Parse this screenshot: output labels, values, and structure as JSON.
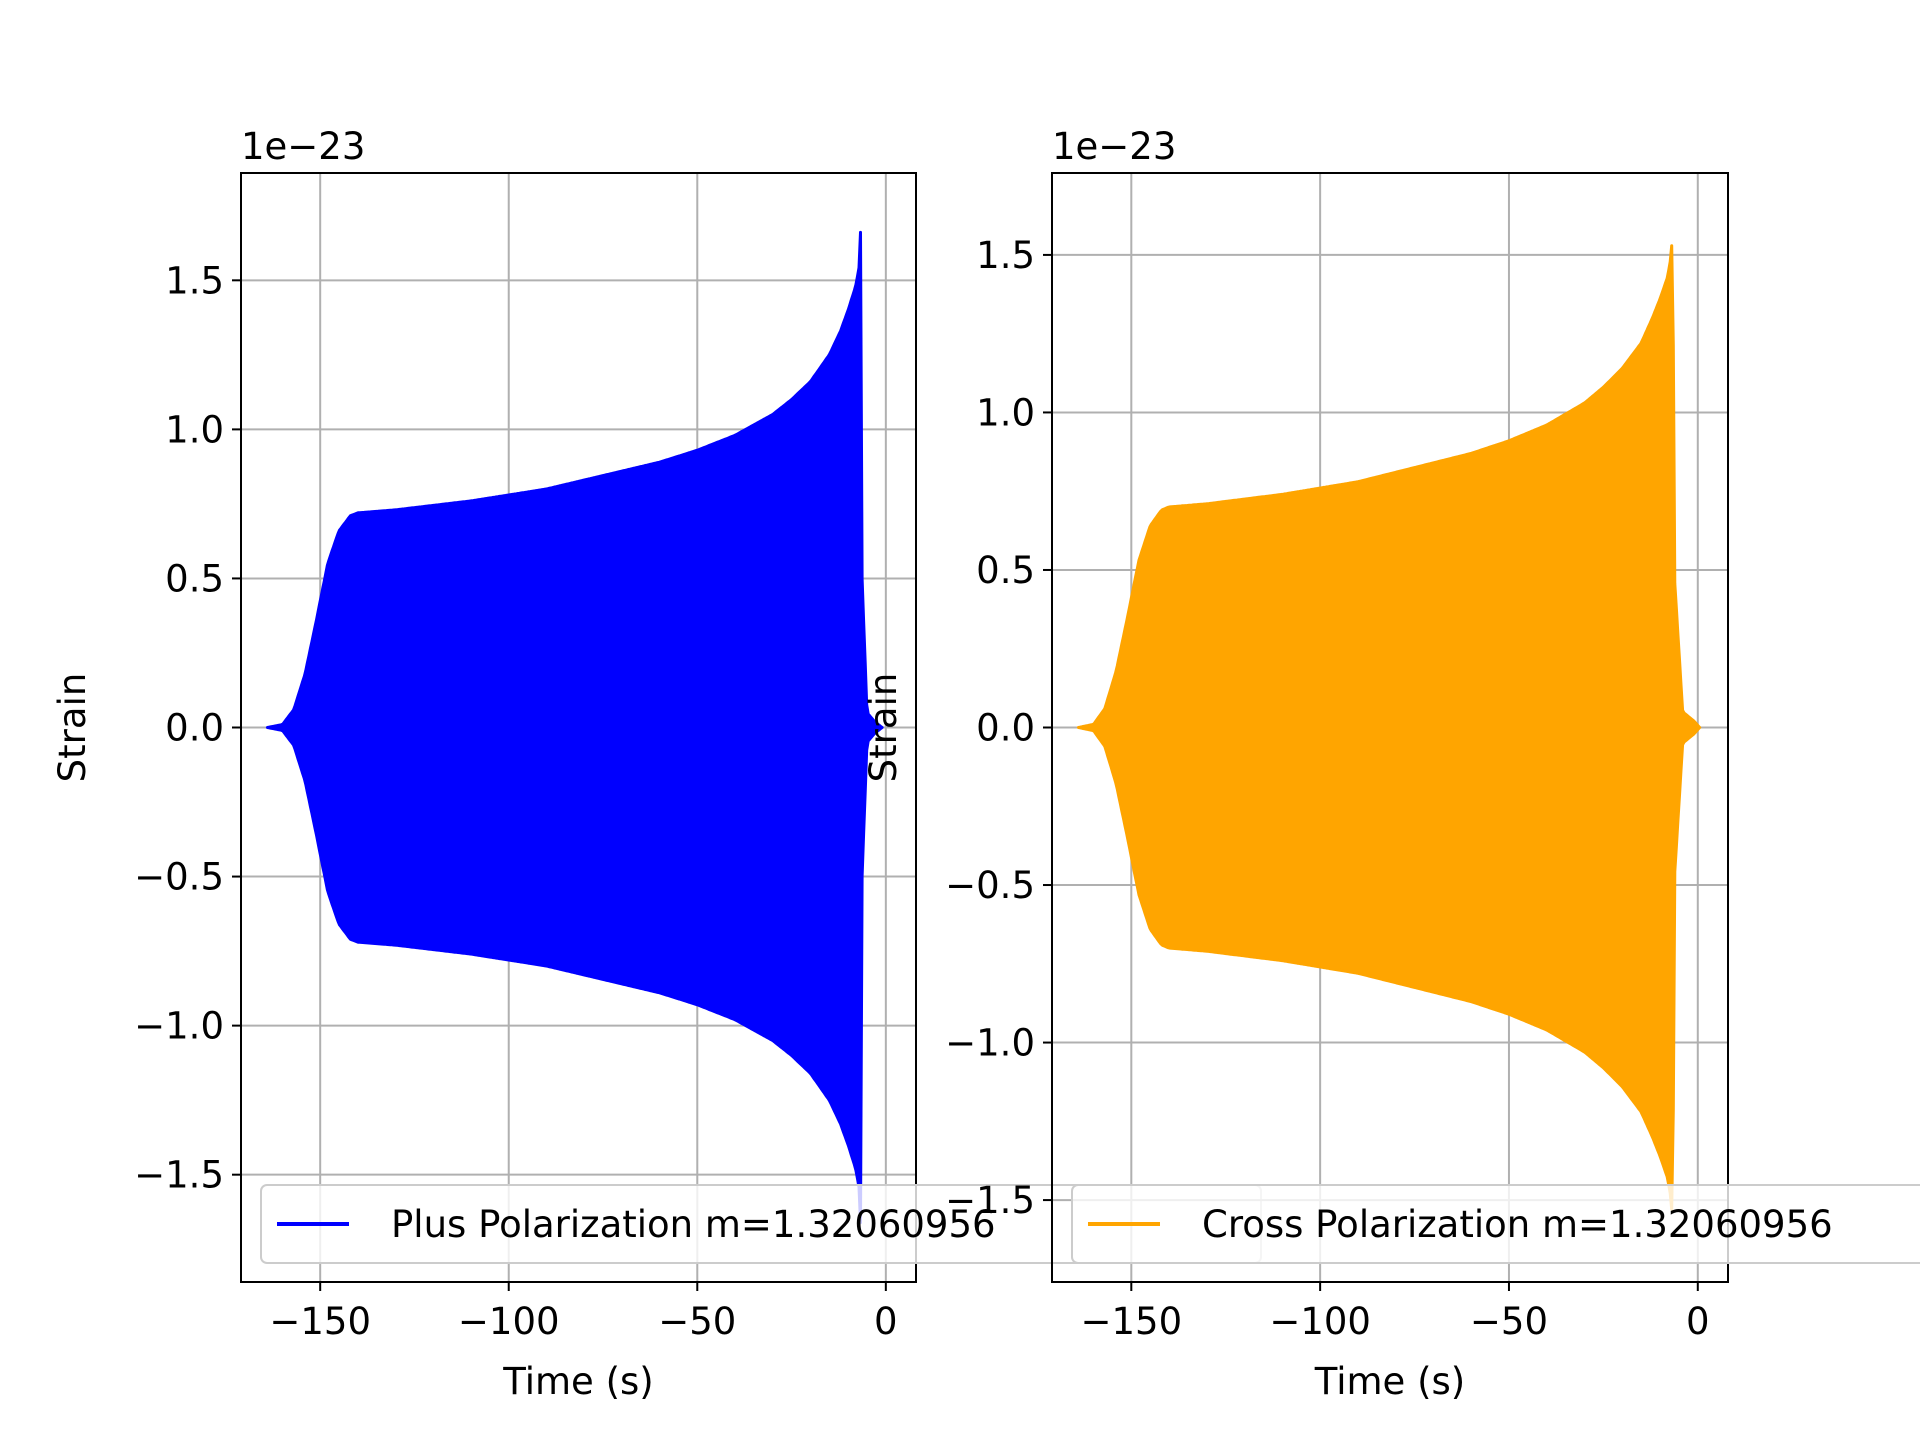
{
  "chart_data": [
    {
      "type": "line",
      "title": "",
      "xlabel": "Time (s)",
      "ylabel": "Strain",
      "offset_text": "1e−23",
      "xlim": [
        -171,
        8
      ],
      "ylim": [
        -1.86,
        1.86
      ],
      "xticks": [
        -150,
        -100,
        -50,
        0
      ],
      "xtick_labels": [
        "−150",
        "−100",
        "−50",
        "0"
      ],
      "yticks": [
        -1.5,
        -1.0,
        -0.5,
        0.0,
        0.5,
        1.0,
        1.5
      ],
      "ytick_labels": [
        "−1.5",
        "−1.0",
        "−0.5",
        "0.0",
        "0.5",
        "1.0",
        "1.5"
      ],
      "grid": true,
      "legend": "lower right",
      "color": "#0000ff",
      "series": [
        {
          "name": "Plus Polarization m=1.32060956",
          "envelope": {
            "t": [
              -164,
              -160,
              -157,
              -154,
              -151,
              -148,
              -145,
              -142,
              -140,
              -130,
              -120,
              -110,
              -100,
              -90,
              -80,
              -70,
              -60,
              -50,
              -40,
              -30,
              -25,
              -20,
              -15,
              -12,
              -10,
              -8,
              -7,
              -6.6,
              -6.3,
              -5,
              -3,
              -1
            ],
            "upper": [
              0.0,
              0.01,
              0.06,
              0.18,
              0.36,
              0.55,
              0.66,
              0.71,
              0.72,
              0.73,
              0.745,
              0.76,
              0.78,
              0.8,
              0.83,
              0.86,
              0.89,
              0.93,
              0.98,
              1.05,
              1.1,
              1.16,
              1.25,
              1.33,
              1.4,
              1.48,
              1.55,
              1.7,
              0.5,
              0.05,
              0.02,
              0.0
            ]
          }
        }
      ]
    },
    {
      "type": "line",
      "title": "",
      "xlabel": "Time (s)",
      "ylabel": "Strain",
      "offset_text": "1e−23",
      "xlim": [
        -171,
        8
      ],
      "ylim": [
        -1.76,
        1.76
      ],
      "xticks": [
        -150,
        -100,
        -50,
        0
      ],
      "xtick_labels": [
        "−150",
        "−100",
        "−50",
        "0"
      ],
      "yticks": [
        -1.5,
        -1.0,
        -0.5,
        0.0,
        0.5,
        1.0,
        1.5
      ],
      "ytick_labels": [
        "−1.5",
        "−1.0",
        "−0.5",
        "0.0",
        "0.5",
        "1.0",
        "1.5"
      ],
      "grid": true,
      "legend": "lower right",
      "color": "#ffa500",
      "series": [
        {
          "name": "Cross Polarization m=1.32060956",
          "envelope": {
            "t": [
              -164,
              -160,
              -157,
              -154,
              -151,
              -148,
              -145,
              -142,
              -140,
              -130,
              -120,
              -110,
              -100,
              -90,
              -80,
              -70,
              -60,
              -50,
              -40,
              -30,
              -25,
              -20,
              -15,
              -12,
              -10,
              -8,
              -7,
              -6.6,
              -6.3,
              -4,
              -1,
              0.5
            ],
            "upper": [
              0.0,
              0.01,
              0.06,
              0.18,
              0.35,
              0.53,
              0.64,
              0.69,
              0.7,
              0.71,
              0.725,
              0.74,
              0.76,
              0.78,
              0.81,
              0.84,
              0.87,
              0.91,
              0.96,
              1.03,
              1.08,
              1.14,
              1.22,
              1.3,
              1.36,
              1.43,
              1.5,
              1.62,
              0.5,
              0.05,
              0.02,
              0.0
            ]
          }
        }
      ]
    }
  ]
}
